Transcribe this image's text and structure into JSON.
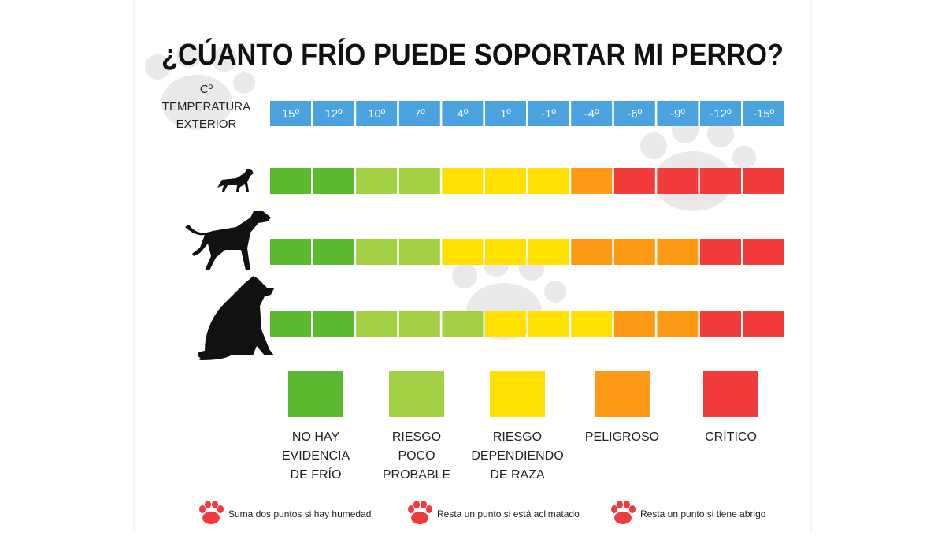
{
  "title": "¿CÚANTO FRÍO PUEDE SOPORTAR MI PERRO?",
  "temperature_header": [
    "Cº",
    "TEMPERATURA",
    "EXTERIOR"
  ],
  "temperatures": [
    "15º",
    "12º",
    "10º",
    "7º",
    "4º",
    "1º",
    "-1º",
    "-4º",
    "-6º",
    "-9º",
    "-12º",
    "-15º"
  ],
  "header_color": "#4aa3df",
  "rows": [
    [
      "#5cb82e",
      "#5cb82e",
      "#a3d145",
      "#a3d145",
      "#ffe000",
      "#ffe000",
      "#ffe000",
      "#ff9a14",
      "#f23c3c",
      "#f23c3c",
      "#f23c3c",
      "#f23c3c"
    ],
    [
      "#5cb82e",
      "#5cb82e",
      "#a3d145",
      "#a3d145",
      "#ffe000",
      "#ffe000",
      "#ffe000",
      "#ff9a14",
      "#ff9a14",
      "#ff9a14",
      "#f23c3c",
      "#f23c3c"
    ],
    [
      "#5cb82e",
      "#5cb82e",
      "#a3d145",
      "#a3d145",
      "#a3d145",
      "#ffe000",
      "#ffe000",
      "#ffe000",
      "#ff9a14",
      "#ff9a14",
      "#f23c3c",
      "#f23c3c"
    ]
  ],
  "legend": [
    {
      "color": "#5cb82e",
      "label": [
        "NO HAY",
        "EVIDENCIA",
        "DE FRÍO"
      ]
    },
    {
      "color": "#a3d145",
      "label": [
        "RIESGO",
        "POCO",
        "PROBABLE"
      ]
    },
    {
      "color": "#ffe000",
      "label": [
        "RIESGO",
        "DEPENDIENDO",
        "DE RAZA"
      ]
    },
    {
      "color": "#ff9a14",
      "label": [
        "PELIGROSO"
      ]
    },
    {
      "color": "#f23c3c",
      "label": [
        "CRÍTICO"
      ]
    }
  ],
  "notes": [
    "Suma dos puntos si hay humedad",
    "Resta un punto si está aclimatado",
    "Resta un punto si tiene abrigo"
  ]
}
